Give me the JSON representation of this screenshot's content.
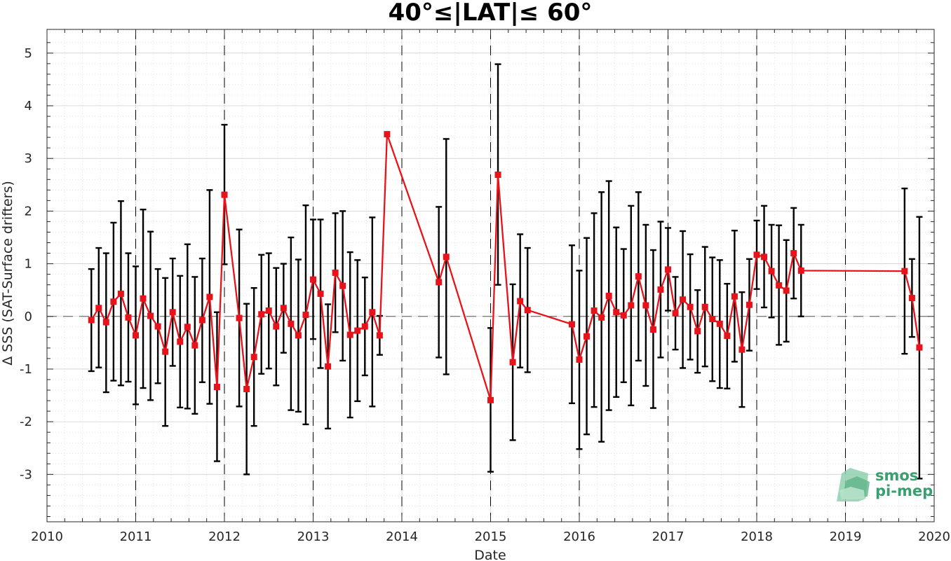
{
  "chart_data": {
    "type": "line",
    "title": "40°≤|LAT|≤ 60°",
    "xlabel": "Date",
    "ylabel": "Δ SSS (SAT-Surface drifters)",
    "xlim": [
      2010,
      2020
    ],
    "ylim": [
      -3.9,
      5.45
    ],
    "x_ticks": [
      "2010",
      "2011",
      "2012",
      "2013",
      "2014",
      "2015",
      "2016",
      "2017",
      "2018",
      "2019",
      "2020"
    ],
    "y_ticks": [
      "-3",
      "-2",
      "-1",
      "0",
      "1",
      "2",
      "3",
      "4",
      "5"
    ],
    "grid": true,
    "zero_line": 0,
    "year_dividers": [
      2011,
      2012,
      2013,
      2014,
      2015,
      2016,
      2017,
      2018,
      2019
    ],
    "series": [
      {
        "color": "#e8131a",
        "errorbar_color": "#000000",
        "points": [
          {
            "x": "2010-07",
            "y": -0.07,
            "lo": -1.04,
            "hi": 0.9
          },
          {
            "x": "2010-08",
            "y": 0.16,
            "lo": -0.97,
            "hi": 1.3
          },
          {
            "x": "2010-09",
            "y": -0.11,
            "lo": -1.44,
            "hi": 1.2
          },
          {
            "x": "2010-10",
            "y": 0.28,
            "lo": -1.22,
            "hi": 1.78
          },
          {
            "x": "2010-11",
            "y": 0.43,
            "lo": -1.31,
            "hi": 2.19
          },
          {
            "x": "2010-12",
            "y": -0.02,
            "lo": -1.24,
            "hi": 1.2
          },
          {
            "x": "2011-01",
            "y": -0.36,
            "lo": -1.67,
            "hi": 0.95
          },
          {
            "x": "2011-02",
            "y": 0.34,
            "lo": -1.36,
            "hi": 2.03
          },
          {
            "x": "2011-03",
            "y": 0.01,
            "lo": -1.59,
            "hi": 1.61
          },
          {
            "x": "2011-04",
            "y": -0.19,
            "lo": -1.27,
            "hi": 0.9
          },
          {
            "x": "2011-05",
            "y": -0.67,
            "lo": -2.08,
            "hi": 0.73
          },
          {
            "x": "2011-06",
            "y": 0.08,
            "lo": -0.94,
            "hi": 1.1
          },
          {
            "x": "2011-07",
            "y": -0.48,
            "lo": -1.73,
            "hi": 0.77
          },
          {
            "x": "2011-08",
            "y": -0.2,
            "lo": -1.75,
            "hi": 1.37
          },
          {
            "x": "2011-09",
            "y": -0.55,
            "lo": -1.85,
            "hi": 0.75
          },
          {
            "x": "2011-10",
            "y": -0.07,
            "lo": -1.25,
            "hi": 1.1
          },
          {
            "x": "2011-11",
            "y": 0.37,
            "lo": -1.66,
            "hi": 2.4
          },
          {
            "x": "2011-12",
            "y": -1.34,
            "lo": -2.75,
            "hi": 0.08
          },
          {
            "x": "2012-01",
            "y": 2.31,
            "lo": 0.99,
            "hi": 3.64
          },
          {
            "x": "2012-03",
            "y": -0.03,
            "lo": -1.71,
            "hi": 1.65
          },
          {
            "x": "2012-04",
            "y": -1.38,
            "lo": -3.0,
            "hi": 0.24
          },
          {
            "x": "2012-05",
            "y": -0.77,
            "lo": -2.08,
            "hi": 0.54
          },
          {
            "x": "2012-06",
            "y": 0.04,
            "lo": -1.09,
            "hi": 1.17
          },
          {
            "x": "2012-07",
            "y": 0.11,
            "lo": -0.99,
            "hi": 1.2
          },
          {
            "x": "2012-08",
            "y": -0.19,
            "lo": -1.31,
            "hi": 0.92
          },
          {
            "x": "2012-09",
            "y": 0.16,
            "lo": -0.69,
            "hi": 1.0
          },
          {
            "x": "2012-10",
            "y": -0.14,
            "lo": -1.78,
            "hi": 1.5
          },
          {
            "x": "2012-11",
            "y": -0.36,
            "lo": -1.81,
            "hi": 1.08
          },
          {
            "x": "2012-12",
            "y": 0.03,
            "lo": -2.05,
            "hi": 2.11
          },
          {
            "x": "2013-01",
            "y": 0.7,
            "lo": -0.43,
            "hi": 1.84
          },
          {
            "x": "2013-02",
            "y": 0.43,
            "lo": -0.98,
            "hi": 1.84
          },
          {
            "x": "2013-03",
            "y": -0.95,
            "lo": -2.13,
            "hi": 0.23
          },
          {
            "x": "2013-04",
            "y": 0.83,
            "lo": -0.3,
            "hi": 1.96
          },
          {
            "x": "2013-05",
            "y": 0.58,
            "lo": -0.84,
            "hi": 2.0
          },
          {
            "x": "2013-06",
            "y": -0.35,
            "lo": -1.92,
            "hi": 1.22
          },
          {
            "x": "2013-07",
            "y": -0.27,
            "lo": -1.61,
            "hi": 1.07
          },
          {
            "x": "2013-08",
            "y": -0.19,
            "lo": -1.12,
            "hi": 0.74
          },
          {
            "x": "2013-09",
            "y": 0.08,
            "lo": -1.71,
            "hi": 1.88
          },
          {
            "x": "2013-10",
            "y": -0.36,
            "lo": -0.73,
            "hi": 0.01
          },
          {
            "x": "2013-11",
            "y": 3.46,
            "lo": 3.46,
            "hi": 3.46
          },
          {
            "x": "2014-06",
            "y": 0.65,
            "lo": -0.78,
            "hi": 2.08
          },
          {
            "x": "2014-07",
            "y": 1.13,
            "lo": -1.1,
            "hi": 3.37
          },
          {
            "x": "2015-01",
            "y": -1.59,
            "lo": -2.95,
            "hi": -0.22
          },
          {
            "x": "2015-02",
            "y": 2.69,
            "lo": 0.6,
            "hi": 4.79
          },
          {
            "x": "2015-04",
            "y": -0.87,
            "lo": -2.35,
            "hi": 0.61
          },
          {
            "x": "2015-05",
            "y": 0.29,
            "lo": -0.97,
            "hi": 1.56
          },
          {
            "x": "2015-06",
            "y": 0.12,
            "lo": -1.06,
            "hi": 1.3
          },
          {
            "x": "2015-12",
            "y": -0.15,
            "lo": -1.65,
            "hi": 1.35
          },
          {
            "x": "2016-01",
            "y": -0.82,
            "lo": -2.52,
            "hi": 0.87
          },
          {
            "x": "2016-02",
            "y": -0.38,
            "lo": -2.24,
            "hi": 1.49
          },
          {
            "x": "2016-03",
            "y": 0.11,
            "lo": -1.72,
            "hi": 1.96
          },
          {
            "x": "2016-04",
            "y": -0.02,
            "lo": -2.38,
            "hi": 2.36
          },
          {
            "x": "2016-05",
            "y": 0.39,
            "lo": -1.78,
            "hi": 2.57
          },
          {
            "x": "2016-06",
            "y": 0.08,
            "lo": -1.53,
            "hi": 1.69
          },
          {
            "x": "2016-07",
            "y": 0.02,
            "lo": -1.25,
            "hi": 1.28
          },
          {
            "x": "2016-08",
            "y": 0.21,
            "lo": -1.69,
            "hi": 2.1
          },
          {
            "x": "2016-09",
            "y": 0.76,
            "lo": -0.84,
            "hi": 2.36
          },
          {
            "x": "2016-10",
            "y": 0.21,
            "lo": -1.32,
            "hi": 1.74
          },
          {
            "x": "2016-11",
            "y": -0.25,
            "lo": -1.74,
            "hi": 1.26
          },
          {
            "x": "2016-12",
            "y": 0.51,
            "lo": -0.78,
            "hi": 1.8
          },
          {
            "x": "2017-01",
            "y": 0.89,
            "lo": 0.11,
            "hi": 1.68
          },
          {
            "x": "2017-02",
            "y": 0.06,
            "lo": -0.63,
            "hi": 0.75
          },
          {
            "x": "2017-03",
            "y": 0.32,
            "lo": -0.98,
            "hi": 1.62
          },
          {
            "x": "2017-04",
            "y": 0.18,
            "lo": -0.82,
            "hi": 1.18
          },
          {
            "x": "2017-05",
            "y": -0.28,
            "lo": -1.07,
            "hi": 0.5
          },
          {
            "x": "2017-06",
            "y": 0.18,
            "lo": -0.95,
            "hi": 1.32
          },
          {
            "x": "2017-07",
            "y": -0.05,
            "lo": -1.23,
            "hi": 1.12
          },
          {
            "x": "2017-08",
            "y": -0.14,
            "lo": -1.36,
            "hi": 1.07
          },
          {
            "x": "2017-09",
            "y": -0.37,
            "lo": -1.37,
            "hi": 0.62
          },
          {
            "x": "2017-10",
            "y": 0.38,
            "lo": -0.86,
            "hi": 1.63
          },
          {
            "x": "2017-11",
            "y": -0.63,
            "lo": -1.72,
            "hi": 0.46
          },
          {
            "x": "2017-12",
            "y": 0.22,
            "lo": -0.65,
            "hi": 1.09
          },
          {
            "x": "2018-01",
            "y": 1.17,
            "lo": 0.52,
            "hi": 1.82
          },
          {
            "x": "2018-02",
            "y": 1.13,
            "lo": 0.17,
            "hi": 2.1
          },
          {
            "x": "2018-03",
            "y": 0.86,
            "lo": -0.02,
            "hi": 1.74
          },
          {
            "x": "2018-04",
            "y": 0.59,
            "lo": -0.54,
            "hi": 1.73
          },
          {
            "x": "2018-05",
            "y": 0.49,
            "lo": -0.48,
            "hi": 1.45
          },
          {
            "x": "2018-06",
            "y": 1.2,
            "lo": 0.34,
            "hi": 2.06
          },
          {
            "x": "2018-07",
            "y": 0.87,
            "lo": 0.0,
            "hi": 1.74
          },
          {
            "x": "2019-09",
            "y": 0.86,
            "lo": -0.71,
            "hi": 2.43
          },
          {
            "x": "2019-10",
            "y": 0.35,
            "lo": -0.39,
            "hi": 1.09
          },
          {
            "x": "2019-11",
            "y": -0.59,
            "lo": -3.08,
            "hi": 1.89
          }
        ]
      }
    ]
  },
  "logo": {
    "line1": "smos",
    "line2": "pi-mep",
    "color": "#3a9e6e"
  }
}
